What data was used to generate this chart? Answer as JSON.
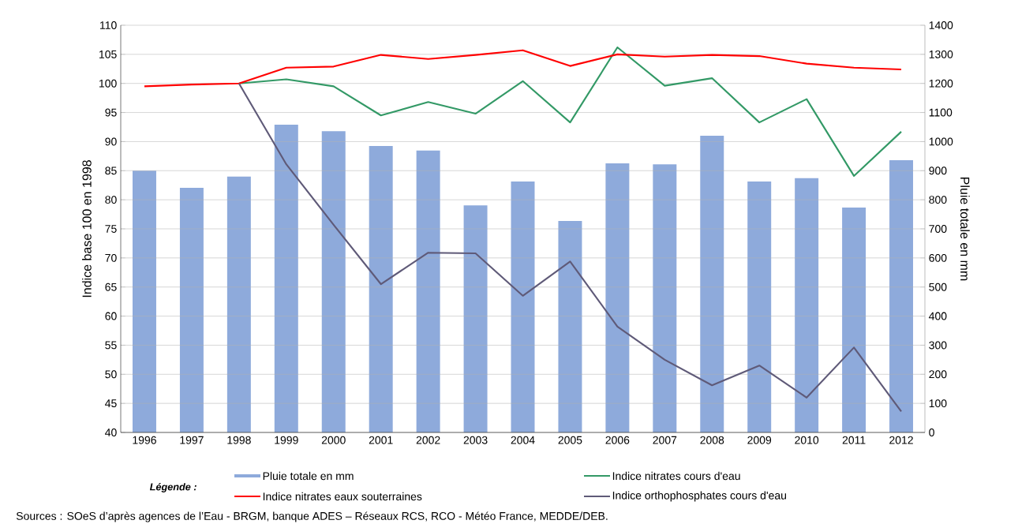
{
  "chart_data": {
    "type": "bar",
    "ylabel": "Indice base 100 en 1998",
    "y2label": "Pluie totale en mm",
    "legend_title": "Légende :",
    "categories": [
      "1996",
      "1997",
      "1998",
      "1999",
      "2000",
      "2001",
      "2002",
      "2003",
      "2004",
      "2005",
      "2006",
      "2007",
      "2008",
      "2009",
      "2010",
      "2011",
      "2012"
    ],
    "series": [
      {
        "name": "Pluie totale en mm",
        "axis": "y2",
        "color": "#8eaadb",
        "values": [
          900,
          841,
          880,
          1058,
          1036,
          985,
          969,
          781,
          863,
          727,
          925,
          922,
          1020,
          863,
          874,
          773,
          936
        ]
      },
      {
        "name": "Indice nitrates cours d'eau",
        "type": "line",
        "color": "#339966",
        "values": [
          null,
          null,
          100,
          100.7,
          99.5,
          94.5,
          96.8,
          94.8,
          100.4,
          93.3,
          106.2,
          99.6,
          100.9,
          93.3,
          97.3,
          84.1,
          91.7
        ]
      },
      {
        "name": "Indice nitrates eaux souterraines",
        "type": "line",
        "color": "#ff0000",
        "values": [
          99.5,
          99.8,
          100,
          102.7,
          102.9,
          104.9,
          104.2,
          104.9,
          105.7,
          103,
          105,
          104.6,
          104.9,
          104.7,
          103.4,
          102.7,
          102.4
        ]
      },
      {
        "name": "Indice orthophosphates cours d'eau",
        "type": "line",
        "color": "#5f5a78",
        "values": [
          null,
          null,
          100,
          86.1,
          75.7,
          65.5,
          70.9,
          70.8,
          63.5,
          69.4,
          58.2,
          52.5,
          48.1,
          51.5,
          46,
          54.6,
          43.6
        ]
      }
    ],
    "ylim": [
      40,
      110
    ],
    "yticks": [
      40,
      45,
      50,
      55,
      60,
      65,
      70,
      75,
      80,
      85,
      90,
      95,
      100,
      105,
      110
    ],
    "y2lim": [
      0,
      1400
    ],
    "y2ticks": [
      0,
      100,
      200,
      300,
      400,
      500,
      600,
      700,
      800,
      900,
      1000,
      1100,
      1200,
      1300,
      1400
    ],
    "grid": "y",
    "legend": "bottom",
    "marker": "none",
    "line_style": "solid",
    "annotations": [
      "Sources : SOeS d’après agences de l’Eau - BRGM, banque ADES – Réseaux RCS, RCO - Météo France, MEDDE/DEB."
    ]
  }
}
